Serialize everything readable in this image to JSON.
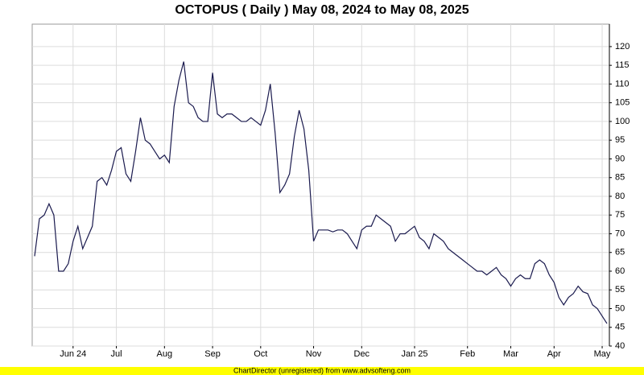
{
  "chart_data": {
    "type": "line",
    "title": "OCTOPUS ( Daily ) May 08, 2024 to May 08, 2025",
    "categories": [
      null,
      null,
      null,
      null,
      null,
      null,
      null,
      null,
      "Jun 24",
      null,
      null,
      null,
      null,
      null,
      null,
      null,
      null,
      "Jul",
      null,
      null,
      null,
      null,
      null,
      null,
      null,
      null,
      null,
      "Aug",
      null,
      null,
      null,
      null,
      null,
      null,
      null,
      null,
      null,
      "Sep",
      null,
      null,
      null,
      null,
      null,
      null,
      null,
      null,
      null,
      "Oct",
      null,
      null,
      null,
      null,
      null,
      null,
      null,
      null,
      null,
      null,
      "Nov",
      null,
      null,
      null,
      null,
      null,
      null,
      null,
      null,
      null,
      "Dec",
      null,
      null,
      null,
      null,
      null,
      null,
      null,
      null,
      null,
      null,
      "Jan 25",
      null,
      null,
      null,
      null,
      null,
      null,
      null,
      null,
      null,
      null,
      "Feb",
      null,
      null,
      null,
      null,
      null,
      null,
      null,
      null,
      "Mar",
      null,
      null,
      null,
      null,
      null,
      null,
      null,
      null,
      "Apr",
      null,
      null,
      null,
      null,
      null,
      null,
      null,
      null,
      null,
      "May",
      null
    ],
    "series": [
      {
        "color": "#1a1a4e",
        "values": [
          64,
          74,
          75,
          78,
          75,
          60,
          60,
          62,
          68,
          72,
          66,
          69,
          72,
          84,
          85,
          83,
          87,
          92,
          93,
          86,
          84,
          92,
          101,
          95,
          94,
          92,
          90,
          91,
          89,
          104,
          111,
          116,
          105,
          104,
          101,
          100,
          100,
          113,
          102,
          101,
          102,
          102,
          101,
          100,
          100,
          101,
          100,
          99,
          103,
          110,
          97,
          81,
          83,
          86,
          96,
          103,
          98,
          87,
          68,
          71,
          71,
          71,
          70.5,
          71,
          71,
          70,
          68,
          66,
          71,
          72,
          72,
          75,
          74,
          73,
          72,
          68,
          70,
          70,
          71,
          72,
          69,
          68,
          66,
          70,
          69,
          68,
          66,
          65,
          64,
          63,
          62,
          61,
          60,
          60,
          59,
          60,
          61,
          59,
          58,
          56,
          58,
          59,
          58,
          58,
          62,
          63,
          62,
          59,
          57,
          53,
          51,
          53,
          54,
          56,
          54.5,
          54,
          51,
          50,
          48,
          46
        ]
      }
    ],
    "ylim": [
      40,
      126
    ],
    "yticks": [
      40,
      45,
      50,
      55,
      60,
      65,
      70,
      75,
      80,
      85,
      90,
      95,
      100,
      105,
      110,
      115,
      120
    ],
    "grid": true
  },
  "credit": "ChartDirector (unregistered) from www.advsofteng.com"
}
